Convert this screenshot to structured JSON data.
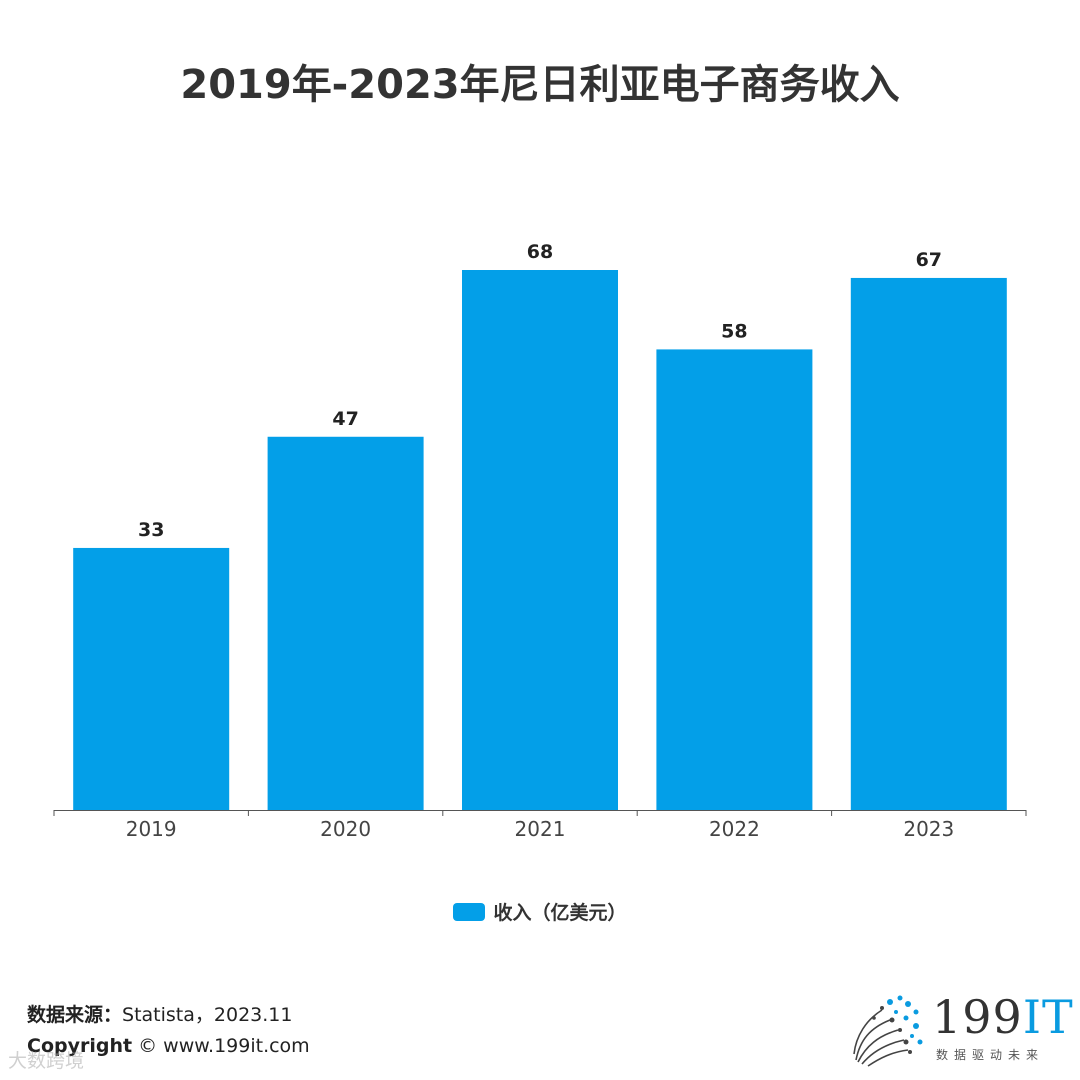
{
  "title": "2019年-2023年尼日利亚电子商务收入",
  "chart_data": {
    "type": "bar",
    "title": "2019年-2023年尼日利亚电子商务收入",
    "categories": [
      "2019",
      "2020",
      "2021",
      "2022",
      "2023"
    ],
    "series": [
      {
        "name": "收入（亿美元）",
        "values": [
          33,
          47,
          68,
          58,
          67
        ],
        "color": "#039fe8"
      }
    ],
    "data_labels": [
      "33",
      "47",
      "68",
      "58",
      "67"
    ],
    "ylim": [
      0,
      68
    ],
    "xlabel": "",
    "ylabel": "",
    "grid": false,
    "legend_position": "bottom-center"
  },
  "legend": {
    "label": "收入（亿美元）",
    "color": "#039fe8"
  },
  "footer": {
    "source_key": "数据来源：",
    "source_value": "Statista，2023.11",
    "copyright_key": "Copyright",
    "copyright_value": "© www.199it.com",
    "watermark": "大数跨境"
  },
  "brand": {
    "name_prefix": "199",
    "name_suffix": "IT",
    "tagline": "数据驱动未来"
  }
}
